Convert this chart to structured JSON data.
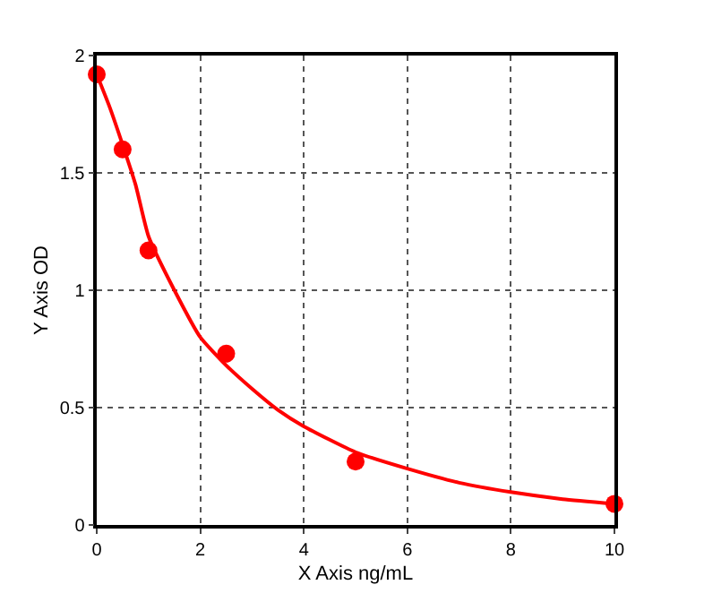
{
  "chart_data": {
    "type": "scatter",
    "xlabel": "X Axis ng/mL",
    "ylabel": "Y Axis OD",
    "series": [
      {
        "color": "#ff0000",
        "marker": "circle",
        "x": [
          0,
          0.5,
          1,
          2.5,
          5,
          10
        ],
        "values": [
          1.92,
          1.6,
          1.17,
          0.73,
          0.27,
          0.09
        ]
      },
      {
        "type": "line",
        "color": "#ff0000",
        "marker": "none",
        "x": [
          0,
          0.25,
          0.5,
          0.75,
          1,
          1.5,
          2,
          2.5,
          3,
          3.5,
          4,
          5,
          6,
          7,
          8,
          9,
          10
        ],
        "values": [
          1.92,
          1.78,
          1.62,
          1.45,
          1.23,
          1.0,
          0.8,
          0.68,
          0.58,
          0.49,
          0.42,
          0.31,
          0.24,
          0.18,
          0.14,
          0.11,
          0.09
        ]
      }
    ],
    "xlim": [
      0,
      10
    ],
    "xticks": [
      0,
      2,
      4,
      6,
      8,
      10
    ],
    "ylim": [
      0,
      2
    ],
    "yticks": [
      0,
      0.5,
      1,
      1.5,
      2
    ],
    "grid": true
  }
}
